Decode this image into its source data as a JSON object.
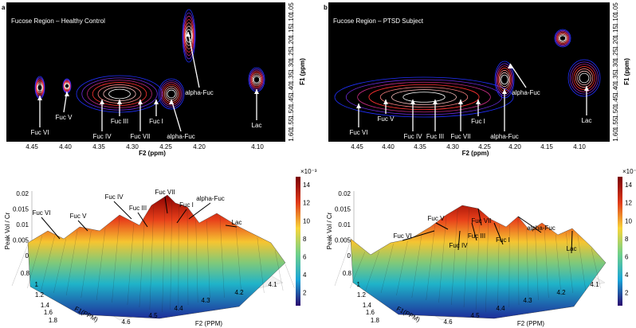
{
  "panels": [
    {
      "letter": "a",
      "contour": {
        "title": "Fucose Region – Healthy Control",
        "x_label": "F2 (ppm)",
        "y_label": "F1 (ppm)",
        "x_ticks": [
          "4.45",
          "4.40",
          "4.35",
          "4.30",
          "4.25",
          "4.20",
          "4.10"
        ],
        "y_ticks": [
          "1.60",
          "1.55",
          "1.50",
          "1.45",
          "1.40",
          "1.35",
          "1.30",
          "1.25",
          "1.20",
          "1.15",
          "1.10",
          "1.05"
        ],
        "annotations": [
          "Fuc VI",
          "Fuc V",
          "Fuc IV",
          "Fuc III",
          "Fuc VII",
          "Fuc I",
          "alpha-Fuc",
          "alpha-Fuc",
          "Lac"
        ]
      },
      "surface": {
        "z_label": "Peak Vol / Cr",
        "x_label": "F2 (PPM)",
        "y_label": "F1(PPM)",
        "z_ticks": [
          "0.02",
          "0.015",
          "0.01",
          "0.005",
          "0"
        ],
        "y_ticks": [
          "0.8",
          "1",
          "1.2",
          "1.4",
          "1.6",
          "1.8"
        ],
        "x_ticks": [
          "4.6",
          "4.5",
          "4.4",
          "4.3",
          "4.2",
          "4.1"
        ],
        "colorbar_exponent": "×10⁻³",
        "colorbar_ticks": [
          "14",
          "12",
          "10",
          "8",
          "6",
          "4",
          "2"
        ],
        "annotations": [
          "Fuc VI",
          "Fuc V",
          "Fuc IV",
          "Fuc III",
          "Fuc VII",
          "Fuc I",
          "alpha-Fuc",
          "Lac"
        ]
      }
    },
    {
      "letter": "b",
      "contour": {
        "title": "Fucose Region – PTSD Subject",
        "x_label": "F2 (ppm)",
        "y_label": "F1 (ppm)",
        "x_ticks": [
          "4.45",
          "4.40",
          "4.35",
          "4.30",
          "4.25",
          "4.20",
          "4.15",
          "4.10"
        ],
        "y_ticks": [
          "1.60",
          "1.55",
          "1.50",
          "1.45",
          "1.40",
          "1.35",
          "1.30",
          "1.25",
          "1.20",
          "1.15",
          "1.10",
          "1.05"
        ],
        "annotations": [
          "Fuc VI",
          "Fuc V",
          "Fuc IV",
          "Fuc III",
          "Fuc VII",
          "Fuc I",
          "alpha-Fuc",
          "alpha-Fuc",
          "Lac"
        ]
      },
      "surface": {
        "z_label": "Peak Vol / Cr",
        "x_label": "F2 (PPM)",
        "y_label": "F1(PPM)",
        "z_ticks": [
          "0.02",
          "0.015",
          "0.01",
          "0.005",
          "0"
        ],
        "y_ticks": [
          "0.8",
          "1",
          "1.2",
          "1.4",
          "1.6",
          "1.8"
        ],
        "x_ticks": [
          "4.6",
          "4.5",
          "4.4",
          "4.3",
          "4.2",
          "4.1"
        ],
        "colorbar_exponent": "×10⁻³",
        "colorbar_ticks": [
          "14",
          "12",
          "10",
          "8",
          "6",
          "4",
          "2"
        ],
        "annotations": [
          "Fuc VI",
          "Fuc V",
          "Fuc IV",
          "Fuc III",
          "Fuc VII",
          "Fuc I",
          "alpha-Fuc",
          "Lac"
        ]
      }
    }
  ]
}
